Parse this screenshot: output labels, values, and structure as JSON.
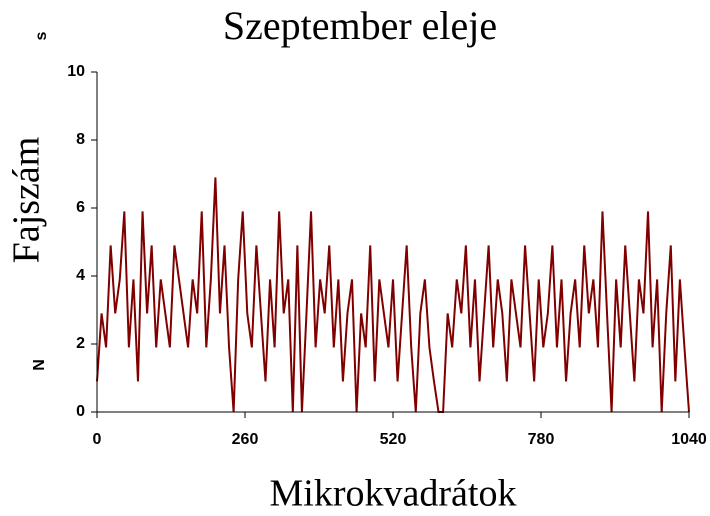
{
  "chart_data": {
    "type": "line",
    "title": "Szeptember eleje",
    "x_label": "Mikrokvadrátok",
    "y_label": "Fajszám",
    "annotations": [
      "s",
      "N"
    ],
    "x": [
      0,
      8,
      16,
      24,
      32,
      40,
      48,
      56,
      64,
      72,
      80,
      88,
      96,
      104,
      112,
      120,
      128,
      136,
      144,
      152,
      160,
      168,
      176,
      184,
      192,
      200,
      208,
      216,
      224,
      232,
      240,
      248,
      256,
      264,
      272,
      280,
      288,
      296,
      304,
      312,
      320,
      328,
      336,
      344,
      352,
      360,
      368,
      376,
      384,
      392,
      400,
      408,
      416,
      424,
      432,
      440,
      448,
      456,
      464,
      472,
      480,
      488,
      496,
      504,
      512,
      520,
      528,
      536,
      544,
      552,
      560,
      568,
      576,
      584,
      592,
      600,
      608,
      616,
      624,
      632,
      640,
      648,
      656,
      664,
      672,
      680,
      688,
      696,
      704,
      712,
      720,
      728,
      736,
      744,
      752,
      760,
      768,
      776,
      784,
      792,
      800,
      808,
      816,
      824,
      832,
      840,
      848,
      856,
      864,
      872,
      880,
      888,
      896,
      904,
      912,
      920,
      928,
      936,
      944,
      952,
      960,
      968,
      976,
      984,
      992,
      1000,
      1008,
      1016,
      1024,
      1032,
      1040
    ],
    "series": [
      {
        "name": "Fajszám",
        "color": "#800000",
        "values": [
          0.9,
          2.9,
          1.9,
          4.9,
          2.9,
          3.9,
          5.9,
          1.9,
          3.9,
          0.9,
          5.9,
          2.9,
          4.9,
          1.9,
          3.9,
          2.9,
          1.9,
          4.9,
          3.9,
          2.9,
          1.9,
          3.9,
          2.9,
          5.9,
          1.9,
          3.9,
          6.9,
          2.9,
          4.9,
          1.9,
          0,
          3.9,
          5.9,
          2.9,
          1.9,
          4.9,
          2.9,
          0.9,
          3.9,
          1.9,
          5.9,
          2.9,
          3.9,
          0,
          4.9,
          0,
          2.9,
          5.9,
          1.9,
          3.9,
          2.9,
          4.9,
          1.9,
          3.9,
          0.9,
          2.9,
          3.9,
          0,
          2.9,
          1.9,
          4.9,
          0.9,
          3.9,
          2.9,
          1.9,
          3.9,
          0.9,
          2.9,
          4.9,
          1.9,
          0,
          2.9,
          3.9,
          1.9,
          0.9,
          0,
          0,
          2.9,
          1.9,
          3.9,
          2.9,
          4.9,
          1.9,
          3.9,
          0.9,
          2.9,
          4.9,
          1.9,
          3.9,
          2.9,
          0.9,
          3.9,
          2.9,
          1.9,
          4.9,
          2.9,
          0.9,
          3.9,
          1.9,
          2.9,
          4.9,
          1.9,
          3.9,
          0.9,
          2.9,
          3.9,
          1.9,
          4.9,
          2.9,
          3.9,
          1.9,
          5.9,
          2.9,
          0,
          3.9,
          1.9,
          4.9,
          2.9,
          0.9,
          3.9,
          2.9,
          5.9,
          1.9,
          3.9,
          0,
          2.9,
          4.9,
          0.9,
          3.9,
          1.9,
          0
        ]
      }
    ],
    "xlim": [
      0,
      1040
    ],
    "xticks": [
      0,
      260,
      520,
      780,
      1040
    ],
    "ylim": [
      0,
      10
    ],
    "yticks": [
      0,
      2,
      4,
      6,
      8,
      10
    ]
  }
}
